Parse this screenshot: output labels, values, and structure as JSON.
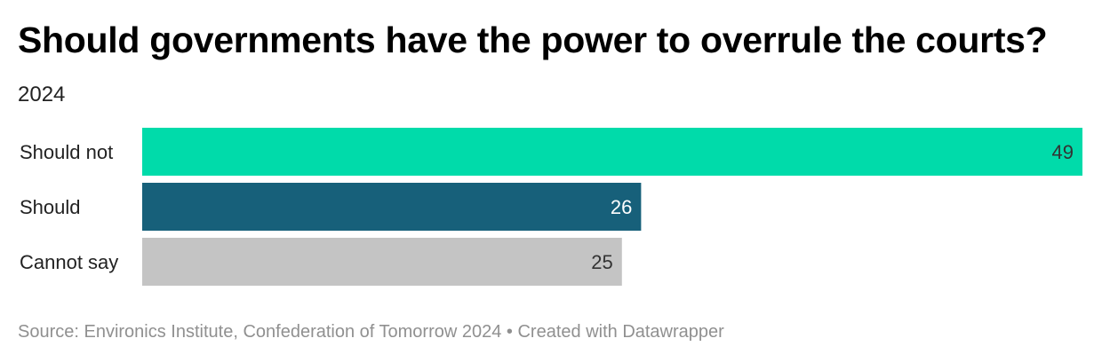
{
  "header": {
    "title": "Should governments have the power to overrule the courts?",
    "subtitle": "2024"
  },
  "footer": {
    "source": "Source: Environics Institute, Confederation of Tomorrow 2024 • Created with Datawrapper"
  },
  "colors": {
    "should_not": "#00dbaa",
    "should": "#17607a",
    "cannot_say": "#c4c4c4"
  },
  "chart_data": {
    "type": "bar",
    "orientation": "horizontal",
    "categories": [
      "Should not",
      "Should",
      "Cannot say"
    ],
    "values": [
      49,
      26,
      25
    ],
    "xlim": [
      0,
      49
    ],
    "grid": false,
    "legend": "none"
  }
}
